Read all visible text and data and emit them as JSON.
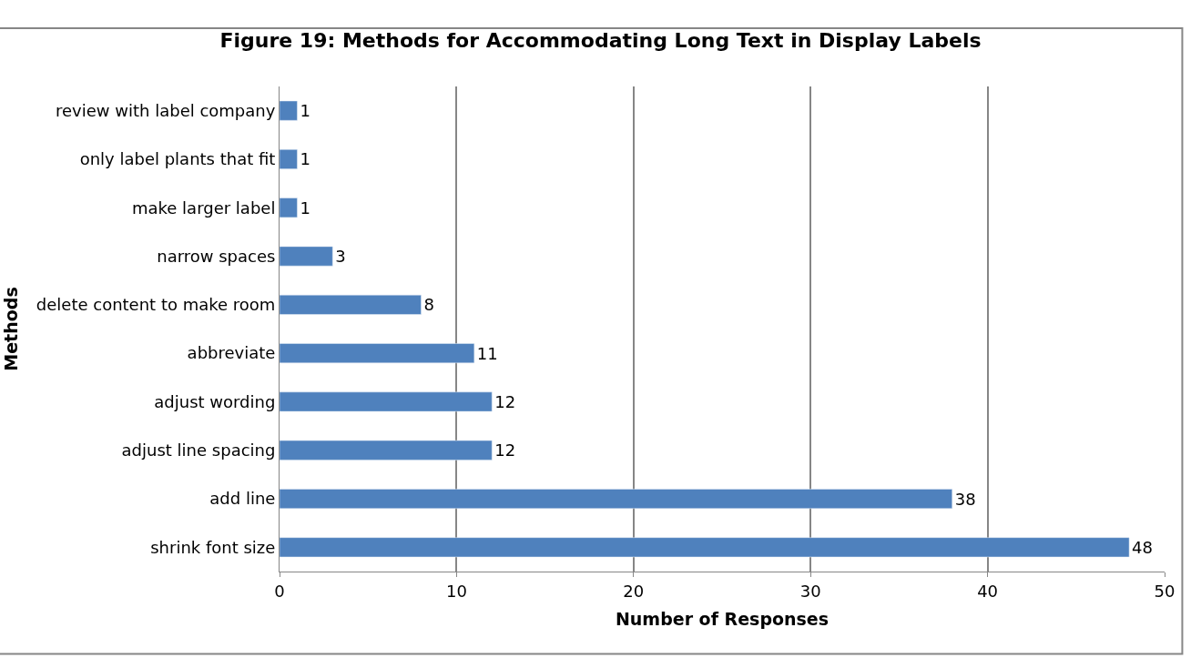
{
  "chart_data": {
    "type": "bar",
    "orientation": "horizontal",
    "title": "Figure 19: Methods for Accommodating Long Text in Display Labels",
    "xlabel": "Number of Responses",
    "ylabel": "Methods",
    "categories": [
      "review with label company",
      "only label plants that fit",
      "make larger label",
      "narrow spaces",
      "delete content to make room",
      "abbreviate",
      "adjust wording",
      "adjust line spacing",
      "add line",
      "shrink font size"
    ],
    "values": [
      1,
      1,
      1,
      3,
      8,
      11,
      12,
      12,
      38,
      48
    ],
    "color": "#4f81bd",
    "xlim": [
      0,
      50
    ],
    "xticks": [
      0,
      10,
      20,
      30,
      40,
      50
    ],
    "grid": "x",
    "legend": false,
    "data_labels": true
  }
}
